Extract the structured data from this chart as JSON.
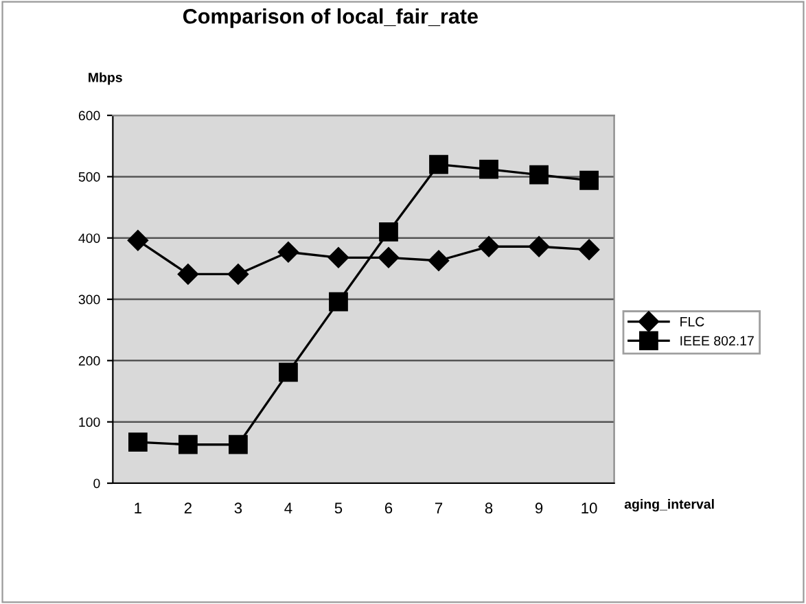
{
  "chart_data": {
    "type": "line",
    "title": "Comparison of local_fair_rate",
    "ylabel": "Mbps",
    "xlabel": "aging_interval",
    "categories": [
      "1",
      "2",
      "3",
      "4",
      "5",
      "6",
      "7",
      "8",
      "9",
      "10"
    ],
    "series": [
      {
        "name": "FLC",
        "color": "#000000",
        "marker": "diamond",
        "values": [
          396,
          341,
          341,
          377,
          368,
          368,
          363,
          386,
          386,
          381
        ]
      },
      {
        "name": "IEEE 802.17",
        "color": "#000000",
        "marker": "square",
        "values": [
          67,
          63,
          63,
          181,
          296,
          410,
          520,
          512,
          503,
          494
        ]
      }
    ],
    "ylim": [
      0,
      600
    ],
    "yticks": [
      0,
      100,
      200,
      300,
      400,
      500,
      600
    ],
    "grid": "y",
    "legend": "right",
    "line_style": "solid"
  }
}
